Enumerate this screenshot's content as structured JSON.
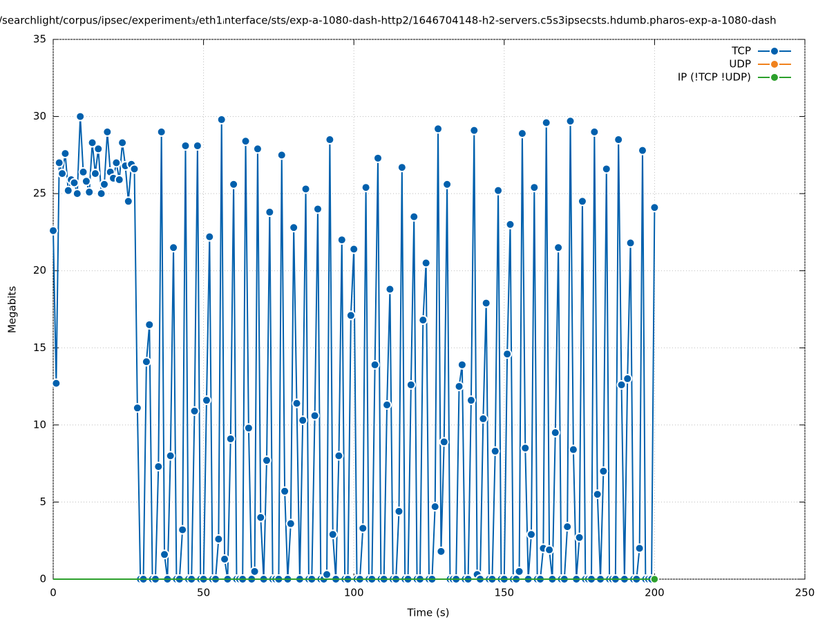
{
  "chart_data": {
    "type": "line",
    "title": "/searchlight/corpus/ipsec/experiment₃/eth1ᵢnterface/sts/exp-a-1080-dash-http2/1646704148-h2-servers.c5s3ipsecsts.hdumb.pharos-exp-a-1080-dash",
    "x_label": "Time (s)",
    "y_label": "Megabits",
    "x": [
      0,
      1,
      2,
      3,
      4,
      5,
      6,
      7,
      8,
      9,
      10,
      11,
      12,
      13,
      14,
      15,
      16,
      17,
      18,
      19,
      20,
      21,
      22,
      23,
      24,
      25,
      26,
      27,
      28,
      29,
      30,
      31,
      32,
      33,
      34,
      35,
      36,
      37,
      38,
      39,
      40,
      41,
      42,
      43,
      44,
      45,
      46,
      47,
      48,
      49,
      50,
      51,
      52,
      53,
      54,
      55,
      56,
      57,
      58,
      59,
      60,
      61,
      62,
      63,
      64,
      65,
      66,
      67,
      68,
      69,
      70,
      71,
      72,
      73,
      74,
      75,
      76,
      77,
      78,
      79,
      80,
      81,
      82,
      83,
      84,
      85,
      86,
      87,
      88,
      89,
      90,
      91,
      92,
      93,
      94,
      95,
      96,
      97,
      98,
      99,
      100,
      101,
      102,
      103,
      104,
      105,
      106,
      107,
      108,
      109,
      110,
      111,
      112,
      113,
      114,
      115,
      116,
      117,
      118,
      119,
      120,
      121,
      122,
      123,
      124,
      125,
      126,
      127,
      128,
      129,
      130,
      131,
      132,
      133,
      134,
      135,
      136,
      137,
      138,
      139,
      140,
      141,
      142,
      143,
      144,
      145,
      146,
      147,
      148,
      149,
      150,
      151,
      152,
      153,
      154,
      155,
      156,
      157,
      158,
      159,
      160,
      161,
      162,
      163,
      164,
      165,
      166,
      167,
      168,
      169,
      170,
      171,
      172,
      173,
      174,
      175,
      176,
      177,
      178,
      179,
      180,
      181,
      182,
      183,
      184,
      185,
      186,
      187,
      188,
      189,
      190,
      191,
      192,
      193,
      194,
      195,
      196,
      197,
      198,
      199,
      200
    ],
    "series": [
      {
        "name": "TCP",
        "color": "#0060ad",
        "values": [
          22.6,
          12.7,
          27.0,
          26.3,
          27.6,
          25.2,
          25.9,
          25.7,
          25.0,
          30.0,
          26.4,
          25.8,
          25.1,
          28.3,
          26.3,
          27.9,
          25.0,
          25.6,
          29.0,
          26.4,
          26.0,
          27.0,
          25.9,
          28.3,
          26.8,
          24.5,
          26.9,
          26.6,
          11.1,
          0,
          0,
          14.1,
          16.5,
          0,
          0,
          7.3,
          29.0,
          1.6,
          0,
          8.0,
          21.5,
          0,
          0,
          3.2,
          28.1,
          0,
          0,
          10.9,
          28.1,
          0,
          0,
          11.6,
          22.2,
          0,
          0,
          2.6,
          29.8,
          1.3,
          0,
          9.1,
          25.6,
          0,
          0,
          0,
          28.4,
          9.8,
          0,
          0.5,
          27.9,
          4.0,
          0,
          7.7,
          23.8,
          0,
          0,
          0,
          27.5,
          5.7,
          0,
          3.6,
          22.8,
          11.4,
          0,
          10.3,
          25.3,
          0,
          0,
          10.6,
          24.0,
          0,
          0,
          0.3,
          28.5,
          2.9,
          0,
          8.0,
          22.0,
          0,
          0,
          17.1,
          21.4,
          0,
          0,
          3.3,
          25.4,
          0,
          0,
          13.9,
          27.3,
          0,
          0,
          11.3,
          18.8,
          0,
          0,
          4.4,
          26.7,
          0,
          0,
          12.6,
          23.5,
          0,
          0,
          16.8,
          20.5,
          0,
          0,
          4.7,
          29.2,
          1.8,
          8.9,
          25.6,
          0,
          0,
          0,
          12.5,
          13.9,
          0,
          0,
          11.6,
          29.1,
          0.3,
          0,
          10.4,
          17.9,
          0,
          0,
          8.3,
          25.2,
          0,
          0,
          14.6,
          23.0,
          0,
          0,
          0.5,
          28.9,
          8.5,
          0,
          2.9,
          25.4,
          0,
          0,
          2.0,
          29.6,
          1.9,
          0,
          9.5,
          21.5,
          0,
          0,
          3.4,
          29.7,
          8.4,
          0,
          2.7,
          24.5,
          0,
          0,
          0,
          29.0,
          5.5,
          0,
          7.0,
          26.6,
          0,
          0,
          0,
          28.5,
          12.6,
          0,
          13.0,
          21.8,
          0,
          0,
          2.0,
          27.8,
          0,
          0,
          0,
          24.1
        ]
      },
      {
        "name": "UDP",
        "color": "#f0821e",
        "values": [
          null,
          null,
          null,
          null,
          null,
          null,
          null,
          null,
          null,
          null,
          null,
          null,
          null,
          null,
          null,
          null,
          null,
          null,
          null,
          null,
          null,
          null,
          null,
          null,
          null,
          null,
          null,
          null,
          null,
          null,
          null,
          null,
          null,
          null,
          null,
          null,
          null,
          null,
          null,
          null,
          null,
          null,
          null,
          null,
          null,
          null,
          null,
          null,
          null,
          null,
          null,
          null,
          null,
          null,
          null,
          null,
          null,
          null,
          null,
          null,
          null,
          null,
          null,
          null,
          null,
          null,
          null,
          null,
          null,
          null,
          null,
          null,
          null,
          null,
          null,
          null,
          null,
          null,
          null,
          null,
          null,
          null,
          null,
          null,
          null,
          null,
          null,
          null,
          null,
          null,
          null,
          null,
          null,
          null,
          null,
          null,
          null,
          null,
          null,
          null,
          null,
          null,
          null,
          null,
          null,
          null,
          null,
          null,
          null,
          null,
          null,
          null,
          null,
          null,
          null,
          null,
          null,
          null,
          null,
          null,
          null,
          null,
          null,
          null,
          null,
          null,
          null,
          null,
          null,
          null,
          null,
          null,
          null,
          null,
          null,
          null,
          null,
          null,
          null,
          null,
          null,
          null,
          null,
          null,
          null,
          null,
          null,
          null,
          null,
          null,
          null,
          null,
          null,
          null,
          null,
          null,
          null,
          null,
          null,
          null,
          null,
          null,
          null,
          null,
          null,
          null,
          null,
          null,
          null,
          null,
          null,
          null,
          null,
          null,
          null,
          null,
          null,
          null,
          null,
          null,
          null,
          null,
          null,
          null,
          null,
          null,
          null,
          null,
          null,
          null,
          null,
          null,
          null,
          null,
          null,
          null,
          null,
          null,
          null,
          null,
          null
        ]
      },
      {
        "name": "IP (!TCP  !UDP)",
        "color": "#2ca02c",
        "values": [
          0,
          0,
          0,
          0,
          0,
          0,
          0,
          0,
          0,
          0,
          0,
          0,
          0,
          0,
          0,
          0,
          0,
          0,
          0,
          0,
          0,
          0,
          0,
          0,
          0,
          0,
          0,
          0,
          0,
          0,
          0,
          0,
          0,
          0,
          0,
          0,
          0,
          0,
          0,
          0,
          0,
          0,
          0,
          0,
          0,
          0,
          0,
          0,
          0,
          0,
          0,
          0,
          0,
          0,
          0,
          0,
          0,
          0,
          0,
          0,
          0,
          0,
          0,
          0,
          0,
          0,
          0,
          0,
          0,
          0,
          0,
          0,
          0,
          0,
          0,
          0,
          0,
          0,
          0,
          0,
          0,
          0,
          0,
          0,
          0,
          0,
          0,
          0,
          0,
          0,
          0,
          0,
          0,
          0,
          0,
          0,
          0,
          0,
          0,
          0,
          0,
          0,
          0,
          0,
          0,
          0,
          0,
          0,
          0,
          0,
          0,
          0,
          0,
          0,
          0,
          0,
          0,
          0,
          0,
          0,
          0,
          0,
          0,
          0,
          0,
          0,
          0,
          0,
          0,
          0,
          0,
          0,
          0,
          0,
          0,
          0,
          0,
          0,
          0,
          0,
          0,
          0,
          0,
          0,
          0,
          0,
          0,
          0,
          0,
          0,
          0,
          0,
          0,
          0,
          0,
          0,
          0,
          0,
          0,
          0,
          0,
          0,
          0,
          0,
          0,
          0,
          0,
          0,
          0,
          0,
          0,
          0,
          0,
          0,
          0,
          0,
          0,
          0,
          0,
          0,
          0,
          0,
          0,
          0,
          0,
          0,
          0,
          0,
          0,
          0,
          0,
          0,
          0,
          0,
          0,
          0,
          0,
          0,
          0,
          0,
          0
        ]
      }
    ],
    "xlim": [
      0,
      250
    ],
    "xticks": [
      0,
      50,
      100,
      150,
      200,
      250
    ],
    "ylim": [
      0,
      35
    ],
    "yticks": [
      0,
      5,
      10,
      15,
      20,
      25,
      30,
      35
    ],
    "grid": true,
    "legend": "top-right"
  }
}
